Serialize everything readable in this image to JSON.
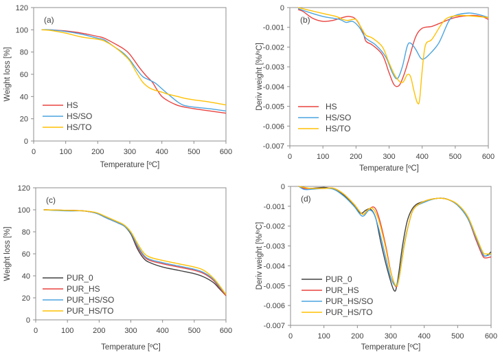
{
  "chart_data": [
    {
      "type": "line",
      "panel_label": "(a)",
      "xlabel": "Temperature [ºC]",
      "ylabel": "Weight loss [%]",
      "xlim": [
        0,
        600
      ],
      "ylim": [
        0,
        120
      ],
      "xticks": [
        0,
        100,
        200,
        300,
        400,
        500,
        600
      ],
      "yticks": [
        0,
        20,
        40,
        60,
        80,
        100,
        120
      ],
      "grid": false,
      "legend": "bottom-left",
      "series": [
        {
          "name": "HS",
          "color": "#e8423f",
          "x": [
            25,
            50,
            100,
            150,
            200,
            220,
            250,
            280,
            300,
            330,
            350,
            370,
            385,
            400,
            420,
            450,
            480,
            500,
            550,
            600
          ],
          "y": [
            100,
            100,
            99,
            97,
            94,
            92.5,
            88,
            83,
            78,
            66,
            59,
            53,
            46,
            40,
            36,
            32,
            30,
            29,
            27,
            25
          ]
        },
        {
          "name": "HS/SO",
          "color": "#4aa3df",
          "x": [
            25,
            50,
            100,
            150,
            200,
            220,
            250,
            280,
            300,
            320,
            340,
            360,
            380,
            400,
            420,
            450,
            470,
            500,
            550,
            600
          ],
          "y": [
            100,
            100,
            98.5,
            96,
            92.5,
            91,
            85,
            79,
            73,
            65,
            58,
            55,
            52,
            47,
            42,
            35,
            32,
            30.5,
            29,
            27
          ]
        },
        {
          "name": "HS/TO",
          "color": "#ffc000",
          "x": [
            25,
            50,
            100,
            150,
            200,
            220,
            250,
            280,
            300,
            320,
            340,
            360,
            380,
            400,
            420,
            450,
            470,
            500,
            550,
            600
          ],
          "y": [
            100,
            99.5,
            97,
            93.5,
            91.5,
            90,
            85,
            78,
            72,
            62,
            53,
            48,
            45.5,
            44,
            42,
            40,
            38.5,
            37,
            35,
            32.5
          ]
        }
      ]
    },
    {
      "type": "line",
      "panel_label": "(b)",
      "xlabel": "Temperature [ºC]",
      "ylabel": "Deriv weight [%/ºC]",
      "xlim": [
        0,
        600
      ],
      "ylim": [
        -0.007,
        0
      ],
      "xticks": [
        0,
        100,
        200,
        300,
        400,
        500,
        600
      ],
      "yticks": [
        0,
        -0.001,
        -0.002,
        -0.003,
        -0.004,
        -0.005,
        -0.006,
        -0.007
      ],
      "grid": false,
      "legend": "bottom-left",
      "series": [
        {
          "name": "HS",
          "color": "#e8423f",
          "x": [
            25,
            40,
            70,
            100,
            130,
            160,
            180,
            200,
            220,
            230,
            250,
            280,
            300,
            315,
            330,
            345,
            360,
            380,
            400,
            430,
            460,
            500,
            550,
            580,
            600
          ],
          "y": [
            -0.0001,
            -0.0002,
            -0.00055,
            -0.0007,
            -0.00065,
            -0.0005,
            -0.00045,
            -0.0006,
            -0.0012,
            -0.0017,
            -0.0019,
            -0.0024,
            -0.0033,
            -0.0039,
            -0.00395,
            -0.0034,
            -0.0026,
            -0.0015,
            -0.00105,
            -0.00095,
            -0.00075,
            -0.0005,
            -0.0004,
            -0.00045,
            -0.0006
          ]
        },
        {
          "name": "HS/SO",
          "color": "#4aa3df",
          "x": [
            25,
            50,
            100,
            150,
            170,
            190,
            210,
            230,
            260,
            290,
            310,
            325,
            340,
            355,
            365,
            380,
            395,
            405,
            420,
            450,
            480,
            500,
            540,
            570,
            600
          ],
          "y": [
            -5e-05,
            -0.0002,
            -0.00045,
            -0.0006,
            -0.00075,
            -0.0007,
            -0.001,
            -0.00155,
            -0.0019,
            -0.0025,
            -0.0033,
            -0.0036,
            -0.003,
            -0.00195,
            -0.0018,
            -0.0021,
            -0.00255,
            -0.0026,
            -0.0024,
            -0.0018,
            -0.0007,
            -0.0004,
            -0.00028,
            -0.00035,
            -0.0005
          ]
        },
        {
          "name": "HS/TO",
          "color": "#ffc000",
          "x": [
            25,
            50,
            100,
            140,
            160,
            175,
            200,
            215,
            230,
            250,
            280,
            300,
            320,
            340,
            355,
            365,
            375,
            385,
            392,
            400,
            410,
            430,
            460,
            480,
            520,
            600
          ],
          "y": [
            0,
            -0.0001,
            -0.0003,
            -0.00045,
            -0.0006,
            -0.00065,
            -0.0006,
            -0.001,
            -0.0014,
            -0.00155,
            -0.002,
            -0.0028,
            -0.0035,
            -0.0038,
            -0.0034,
            -0.0035,
            -0.0042,
            -0.0048,
            -0.0047,
            -0.0032,
            -0.0019,
            -0.0016,
            -0.0008,
            -0.0005,
            -0.0004,
            -0.0005
          ]
        }
      ]
    },
    {
      "type": "line",
      "panel_label": "(c)",
      "xlabel": "Temperature [ºC]",
      "ylabel": "Weight loss [%]",
      "xlim": [
        0,
        600
      ],
      "ylim": [
        0,
        120
      ],
      "xticks": [
        0,
        100,
        200,
        300,
        400,
        500,
        600
      ],
      "yticks": [
        0,
        20,
        40,
        60,
        80,
        100,
        120
      ],
      "grid": false,
      "legend": "bottom-left",
      "series": [
        {
          "name": "PUR_0",
          "color": "#404040",
          "x": [
            25,
            100,
            150,
            190,
            220,
            260,
            280,
            300,
            320,
            340,
            360,
            400,
            450,
            500,
            530,
            560,
            580,
            600
          ],
          "y": [
            100,
            99.5,
            99,
            97,
            93,
            88,
            85,
            78,
            65,
            56,
            52,
            48,
            45,
            42,
            39,
            34,
            28,
            22
          ]
        },
        {
          "name": "PUR_HS",
          "color": "#e8423f",
          "x": [
            25,
            100,
            150,
            190,
            220,
            260,
            280,
            300,
            320,
            340,
            360,
            400,
            450,
            500,
            530,
            560,
            580,
            600
          ],
          "y": [
            100,
            99.5,
            99,
            97,
            93,
            88,
            85,
            79,
            67,
            58,
            54,
            51,
            48,
            45,
            42,
            36,
            29,
            22
          ]
        },
        {
          "name": "PUR_HS/SO",
          "color": "#4aa3df",
          "x": [
            25,
            100,
            150,
            190,
            220,
            260,
            280,
            300,
            320,
            340,
            360,
            400,
            450,
            500,
            530,
            560,
            580,
            600
          ],
          "y": [
            100,
            99,
            99,
            97,
            93,
            88,
            85,
            79,
            68,
            59,
            55,
            52,
            49,
            46,
            43,
            37,
            30,
            23
          ]
        },
        {
          "name": "PUR_HS/TO",
          "color": "#ffc000",
          "x": [
            25,
            100,
            150,
            190,
            220,
            260,
            280,
            300,
            320,
            340,
            360,
            400,
            450,
            500,
            530,
            560,
            580,
            600
          ],
          "y": [
            100,
            99.5,
            99,
            97.5,
            94,
            89,
            86,
            80,
            70,
            61,
            57,
            54,
            51,
            48,
            45,
            38,
            31,
            23
          ]
        }
      ]
    },
    {
      "type": "line",
      "panel_label": "(d)",
      "xlabel": "Temperature [ºC]",
      "ylabel": "Deriv weight [%/ºC]",
      "xlim": [
        0,
        600
      ],
      "ylim": [
        -0.007,
        0
      ],
      "xticks": [
        0,
        100,
        200,
        300,
        400,
        500,
        600
      ],
      "yticks": [
        0,
        -0.001,
        -0.002,
        -0.003,
        -0.004,
        -0.005,
        -0.006,
        -0.007
      ],
      "grid": false,
      "legend": "bottom-left",
      "series": [
        {
          "name": "PUR_0",
          "color": "#404040",
          "x": [
            25,
            40,
            60,
            100,
            130,
            160,
            190,
            210,
            225,
            240,
            255,
            270,
            290,
            310,
            320,
            335,
            350,
            370,
            400,
            440,
            470,
            500,
            530,
            555,
            575,
            585,
            600
          ],
          "y": [
            0,
            -5e-05,
            -0.0001,
            -5e-05,
            -0.00015,
            -0.00045,
            -0.00095,
            -0.00135,
            -0.0012,
            -0.00115,
            -0.0016,
            -0.0028,
            -0.0042,
            -0.00525,
            -0.0048,
            -0.003,
            -0.0017,
            -0.001,
            -0.00075,
            -0.0006,
            -0.00065,
            -0.00095,
            -0.0016,
            -0.0026,
            -0.0034,
            -0.0035,
            -0.0033
          ]
        },
        {
          "name": "PUR_HS",
          "color": "#e8423f",
          "x": [
            25,
            40,
            60,
            100,
            130,
            160,
            190,
            215,
            230,
            250,
            265,
            285,
            300,
            315,
            325,
            340,
            355,
            370,
            400,
            440,
            470,
            500,
            530,
            555,
            575,
            585,
            600
          ],
          "y": [
            0,
            -0.0001,
            -0.0001,
            -0.0001,
            -0.0001,
            -0.0004,
            -0.0009,
            -0.0014,
            -0.0012,
            -0.00105,
            -0.0016,
            -0.003,
            -0.0043,
            -0.00505,
            -0.0046,
            -0.003,
            -0.0018,
            -0.0011,
            -0.00075,
            -0.0006,
            -0.00065,
            -0.00095,
            -0.0016,
            -0.0027,
            -0.0035,
            -0.0036,
            -0.00355
          ]
        },
        {
          "name": "PUR_HS/SO",
          "color": "#4aa3df",
          "x": [
            25,
            40,
            60,
            100,
            130,
            160,
            190,
            215,
            235,
            250,
            265,
            285,
            300,
            315,
            325,
            340,
            355,
            370,
            400,
            440,
            470,
            500,
            530,
            555,
            575,
            585,
            600
          ],
          "y": [
            0,
            -0.00015,
            -0.00015,
            -0.0001,
            -0.00015,
            -0.0005,
            -0.001,
            -0.0015,
            -0.0012,
            -0.0014,
            -0.0022,
            -0.0036,
            -0.0046,
            -0.005,
            -0.0045,
            -0.0029,
            -0.0018,
            -0.0011,
            -0.0008,
            -0.0006,
            -0.00065,
            -0.00095,
            -0.0016,
            -0.0026,
            -0.0034,
            -0.0035,
            -0.0034
          ]
        },
        {
          "name": "PUR_HS/TO",
          "color": "#ffc000",
          "x": [
            25,
            40,
            60,
            100,
            130,
            160,
            190,
            215,
            230,
            245,
            262,
            282,
            298,
            315,
            325,
            340,
            355,
            370,
            400,
            440,
            470,
            500,
            530,
            555,
            575,
            585,
            600
          ],
          "y": [
            0,
            -5e-05,
            -0.0001,
            -0.0001,
            -0.0001,
            -0.0004,
            -0.0009,
            -0.0014,
            -0.0012,
            -0.0011,
            -0.0016,
            -0.0029,
            -0.0042,
            -0.005,
            -0.0046,
            -0.003,
            -0.0018,
            -0.0011,
            -0.00075,
            -0.0006,
            -0.00065,
            -0.0009,
            -0.0015,
            -0.0025,
            -0.0033,
            -0.0034,
            -0.0034
          ]
        }
      ]
    }
  ]
}
